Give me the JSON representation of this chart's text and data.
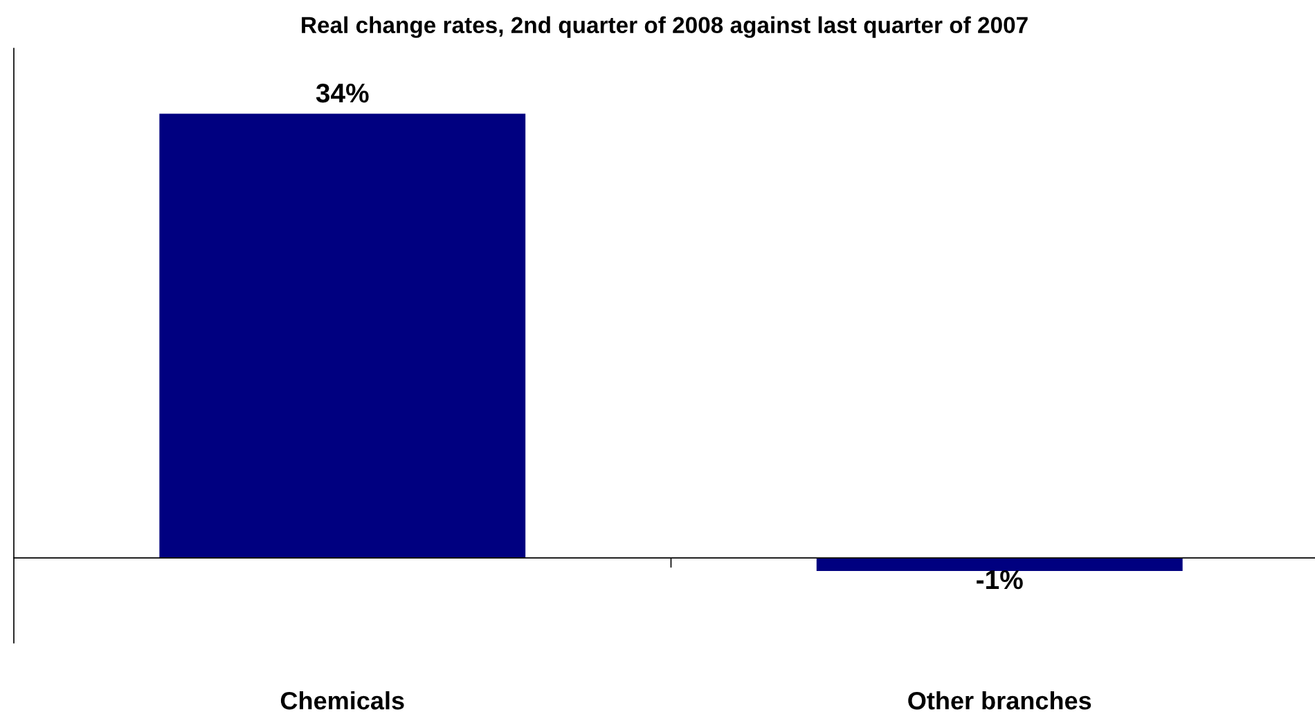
{
  "chart_data": {
    "type": "bar",
    "title": "Real change rates, 2nd quarter of 2008 against last quarter of 2007",
    "categories": [
      "Chemicals",
      "Other branches"
    ],
    "values": [
      34,
      -1
    ],
    "value_labels": [
      "34%",
      "-1%"
    ],
    "color": "#000080",
    "ylim": [
      -6.5,
      39
    ],
    "tick_labels": "x",
    "grid": false,
    "legend": false
  }
}
